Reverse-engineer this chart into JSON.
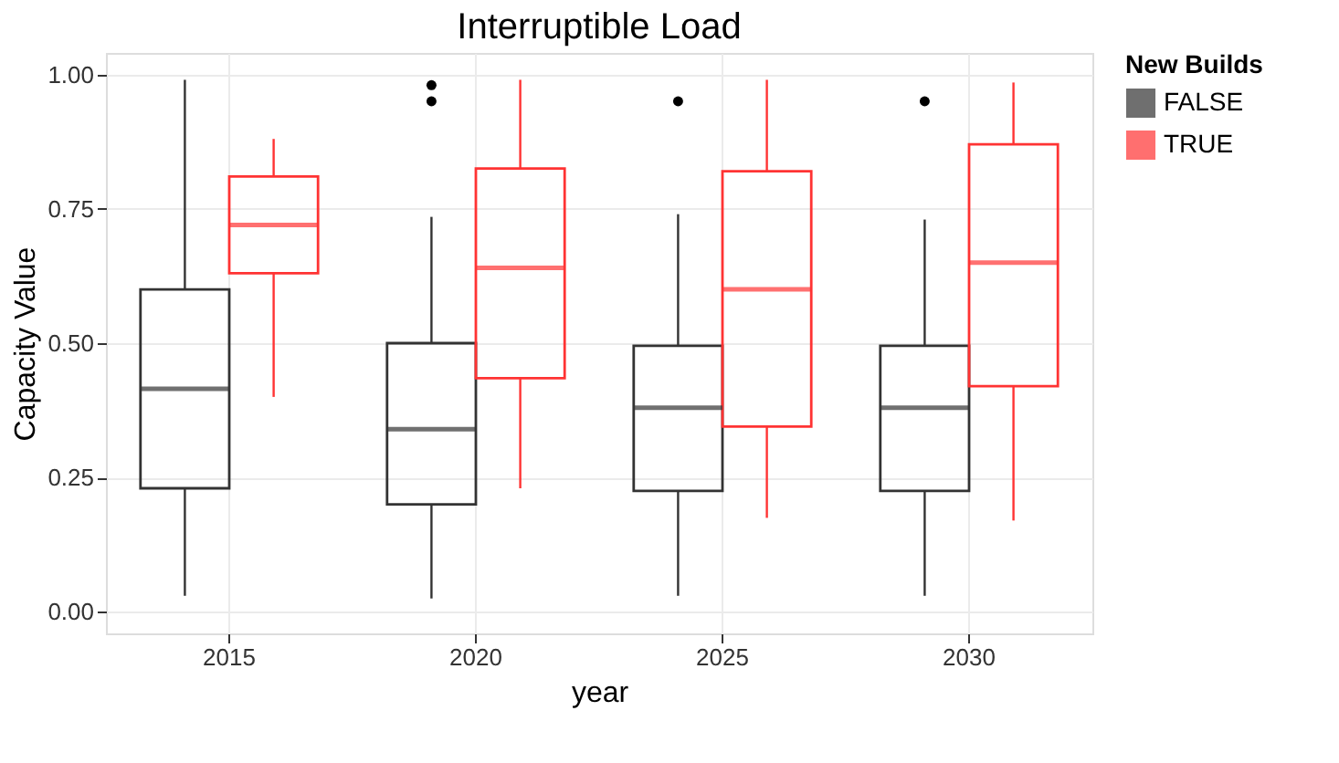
{
  "chart_data": {
    "type": "box",
    "title": "Interruptible Load",
    "xlabel": "year",
    "ylabel": "Capacity Value",
    "legend_title": "New Builds",
    "categories": [
      "2015",
      "2020",
      "2025",
      "2030"
    ],
    "ylim": [
      -0.04,
      1.04
    ],
    "yticks": [
      {
        "value": 0,
        "label": "0.00"
      },
      {
        "value": 0.25,
        "label": "0.25"
      },
      {
        "value": 0.5,
        "label": "0.50"
      },
      {
        "value": 0.75,
        "label": "0.75"
      },
      {
        "value": 1,
        "label": "1.00"
      }
    ],
    "grid": true,
    "legend": "right",
    "series": [
      {
        "name": "FALSE",
        "color": "#333333",
        "boxes": [
          {
            "low": 0.03,
            "q1": 0.23,
            "median": 0.415,
            "q3": 0.6,
            "high": 0.99
          },
          {
            "low": 0.025,
            "q1": 0.2,
            "median": 0.34,
            "q3": 0.5,
            "high": 0.735,
            "outliers": [
              0.95,
              0.98
            ]
          },
          {
            "low": 0.03,
            "q1": 0.225,
            "median": 0.38,
            "q3": 0.495,
            "high": 0.74,
            "outliers": [
              0.95
            ]
          },
          {
            "low": 0.03,
            "q1": 0.225,
            "median": 0.38,
            "q3": 0.495,
            "high": 0.73,
            "outliers": [
              0.95
            ]
          }
        ]
      },
      {
        "name": "TRUE",
        "color": "#ff3333",
        "boxes": [
          {
            "low": 0.4,
            "q1": 0.63,
            "median": 0.72,
            "q3": 0.81,
            "high": 0.88
          },
          {
            "low": 0.23,
            "q1": 0.435,
            "median": 0.64,
            "q3": 0.825,
            "high": 0.99
          },
          {
            "low": 0.175,
            "q1": 0.345,
            "median": 0.6,
            "q3": 0.82,
            "high": 0.99
          },
          {
            "low": 0.17,
            "q1": 0.42,
            "median": 0.65,
            "q3": 0.87,
            "high": 0.985
          }
        ]
      }
    ]
  }
}
